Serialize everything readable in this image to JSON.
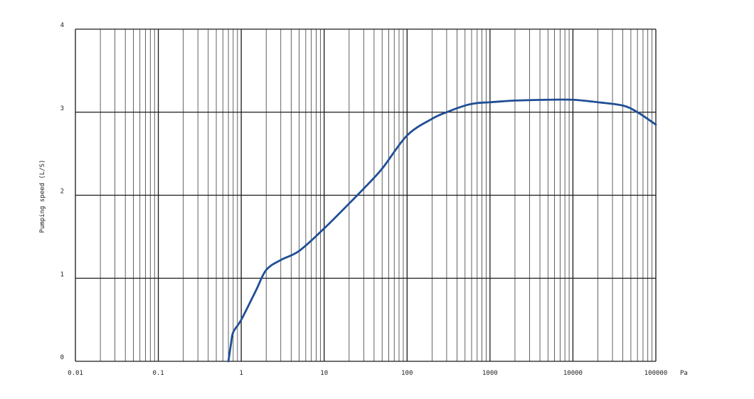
{
  "chart_data": {
    "type": "line",
    "title": "",
    "xlabel": "Pa",
    "ylabel": "Pumping speed (L/S)",
    "x_scale": "log",
    "xlim": [
      0.01,
      100000
    ],
    "ylim": [
      0,
      4
    ],
    "x_ticks": [
      0.01,
      0.1,
      1,
      10,
      100,
      1000,
      10000,
      100000
    ],
    "x_tick_labels": [
      "0.01",
      "0.1",
      "1",
      "10",
      "100",
      "1000",
      "10000",
      "100000"
    ],
    "y_ticks": [
      0,
      1,
      2,
      3,
      4
    ],
    "y_tick_labels": [
      "0",
      "1",
      "2",
      "3",
      "4"
    ],
    "grid": true,
    "line_color": "#1f4e96",
    "grid_color": "#1a1a1a",
    "series": [
      {
        "x": [
          0.7,
          0.75,
          0.8,
          1,
          1.5,
          2,
          3,
          5,
          10,
          20,
          30,
          50,
          100,
          200,
          300,
          500,
          700,
          1000,
          2000,
          5000,
          10000,
          20000,
          40000,
          60000,
          100000
        ],
        "y": [
          0,
          0.2,
          0.35,
          0.5,
          0.85,
          1.1,
          1.22,
          1.33,
          1.6,
          1.9,
          2.08,
          2.32,
          2.72,
          2.92,
          3.0,
          3.08,
          3.11,
          3.12,
          3.14,
          3.15,
          3.15,
          3.12,
          3.08,
          3.0,
          2.85
        ]
      }
    ]
  }
}
